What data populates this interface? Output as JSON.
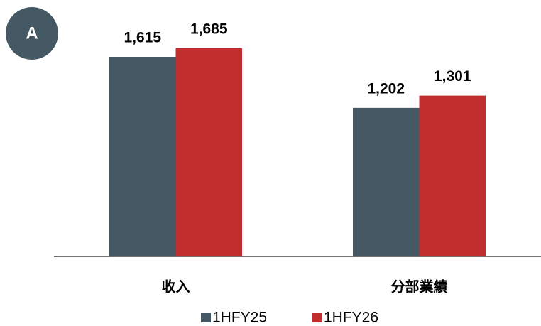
{
  "badge": "A",
  "chart_data": {
    "type": "bar",
    "categories": [
      "收入",
      "分部業績"
    ],
    "series": [
      {
        "name": "1HFY25",
        "color": "#445963",
        "values": [
          1615,
          1202
        ],
        "value_labels": [
          "1,615",
          "1,202"
        ]
      },
      {
        "name": "1HFY26",
        "color": "#bf2d2c",
        "values": [
          1685,
          1301
        ],
        "value_labels": [
          "1,685",
          "1,301"
        ]
      }
    ],
    "ylim": [
      0,
      2000
    ]
  }
}
